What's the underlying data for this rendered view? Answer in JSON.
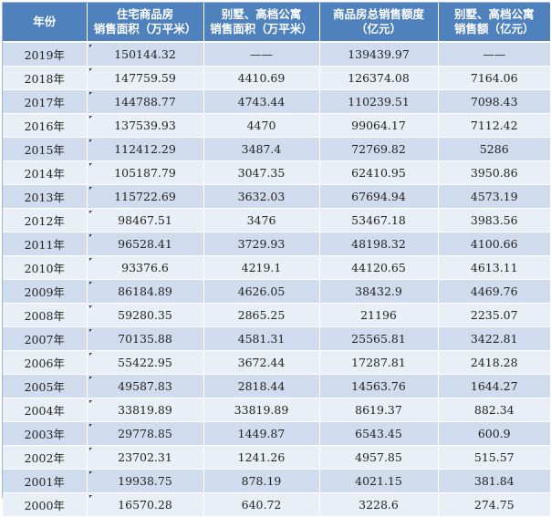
{
  "header": {
    "year": "年份",
    "residential_area": [
      "住宅商品房",
      "销售面积（万平米）"
    ],
    "villa_area": [
      "别墅、高档公寓",
      "销售面积（万平米）"
    ],
    "total_sales": [
      "商品房总销售额度",
      "（亿元）"
    ],
    "villa_sales": [
      "别墅、高档公寓",
      "销售额（亿元）"
    ]
  },
  "rows": [
    {
      "year": "2019年",
      "residential_area": "150144.32",
      "villa_area": "——",
      "total_sales": "139439.97",
      "villa_sales": "——"
    },
    {
      "year": "2018年",
      "residential_area": "147759.59",
      "villa_area": "4410.69",
      "total_sales": "126374.08",
      "villa_sales": "7164.06"
    },
    {
      "year": "2017年",
      "residential_area": "144788.77",
      "villa_area": "4743.44",
      "total_sales": "110239.51",
      "villa_sales": "7098.43"
    },
    {
      "year": "2016年",
      "residential_area": "137539.93",
      "villa_area": "4470",
      "total_sales": "99064.17",
      "villa_sales": "7112.42"
    },
    {
      "year": "2015年",
      "residential_area": "112412.29",
      "villa_area": "3487.4",
      "total_sales": "72769.82",
      "villa_sales": "5286"
    },
    {
      "year": "2014年",
      "residential_area": "105187.79",
      "villa_area": "3047.35",
      "total_sales": "62410.95",
      "villa_sales": "3950.86"
    },
    {
      "year": "2013年",
      "residential_area": "115722.69",
      "villa_area": "3632.03",
      "total_sales": "67694.94",
      "villa_sales": "4573.19"
    },
    {
      "year": "2012年",
      "residential_area": "98467.51",
      "villa_area": "3476",
      "total_sales": "53467.18",
      "villa_sales": "3983.56"
    },
    {
      "year": "2011年",
      "residential_area": "96528.41",
      "villa_area": "3729.93",
      "total_sales": "48198.32",
      "villa_sales": "4100.66"
    },
    {
      "year": "2010年",
      "residential_area": "93376.6",
      "villa_area": "4219.1",
      "total_sales": "44120.65",
      "villa_sales": "4613.11"
    },
    {
      "year": "2009年",
      "residential_area": "86184.89",
      "villa_area": "4626.05",
      "total_sales": "38432.9",
      "villa_sales": "4469.76"
    },
    {
      "year": "2008年",
      "residential_area": "59280.35",
      "villa_area": "2865.25",
      "total_sales": "21196",
      "villa_sales": "2235.07"
    },
    {
      "year": "2007年",
      "residential_area": "70135.88",
      "villa_area": "4581.31",
      "total_sales": "25565.81",
      "villa_sales": "3422.81"
    },
    {
      "year": "2006年",
      "residential_area": "55422.95",
      "villa_area": "3672.44",
      "total_sales": "17287.81",
      "villa_sales": "2418.28"
    },
    {
      "year": "2005年",
      "residential_area": "49587.83",
      "villa_area": "2818.44",
      "total_sales": "14563.76",
      "villa_sales": "1644.27"
    },
    {
      "year": "2004年",
      "residential_area": "33819.89",
      "villa_area": "33819.89",
      "total_sales": "8619.37",
      "villa_sales": "882.34"
    },
    {
      "year": "2003年",
      "residential_area": "29778.85",
      "villa_area": "1449.87",
      "total_sales": "6543.45",
      "villa_sales": "600.9"
    },
    {
      "year": "2002年",
      "residential_area": "23702.31",
      "villa_area": "1241.26",
      "total_sales": "4957.85",
      "villa_sales": "515.57"
    },
    {
      "year": "2001年",
      "residential_area": "19938.75",
      "villa_area": "878.19",
      "total_sales": "4021.15",
      "villa_sales": "381.84"
    },
    {
      "year": "2000年",
      "residential_area": "16570.28",
      "villa_area": "640.72",
      "total_sales": "3228.6",
      "villa_sales": "274.75"
    }
  ]
}
